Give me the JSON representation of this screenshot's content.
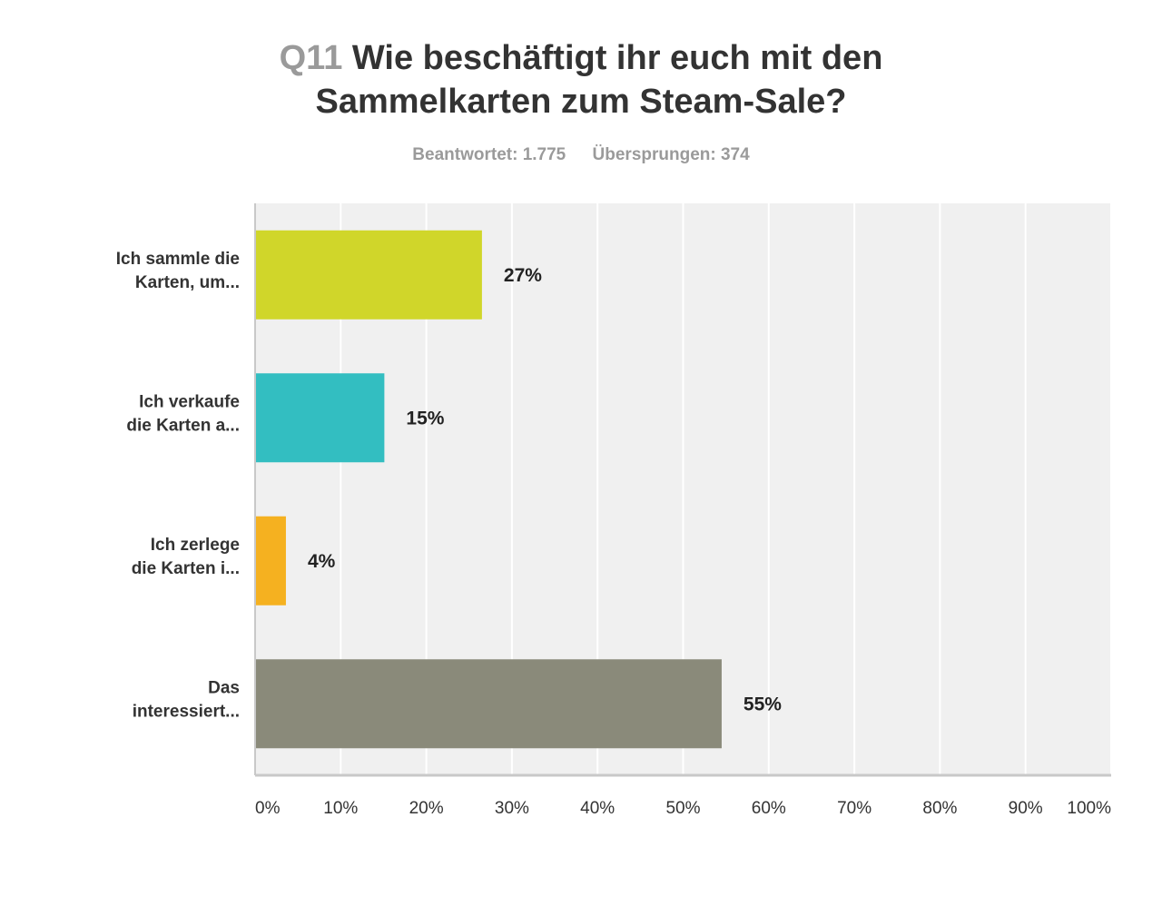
{
  "chart_data": {
    "type": "bar",
    "orientation": "horizontal",
    "title_prefix": "Q11",
    "title_line1": "Wie beschäftigt ihr euch mit den",
    "title_line2": "Sammelkarten zum Steam-Sale?",
    "answered": "Beantwortet: 1.775",
    "skipped": "Übersprungen: 374",
    "categories": [
      [
        "Ich sammle die",
        "Karten, um..."
      ],
      [
        "Ich verkaufe",
        "die Karten a..."
      ],
      [
        "Ich zerlege",
        "die Karten i..."
      ],
      [
        "Das",
        "interessiert..."
      ]
    ],
    "values": [
      26.5,
      15.1,
      3.6,
      54.5
    ],
    "value_labels": [
      "27%",
      "15%",
      "4%",
      "55%"
    ],
    "colors": [
      "#d0d62a",
      "#33bec1",
      "#f5b120",
      "#8a8a7a"
    ],
    "xlim": [
      0,
      100
    ],
    "ticks": [
      "0%",
      "10%",
      "20%",
      "30%",
      "40%",
      "50%",
      "60%",
      "70%",
      "80%",
      "90%",
      "100%"
    ],
    "grid": true
  }
}
